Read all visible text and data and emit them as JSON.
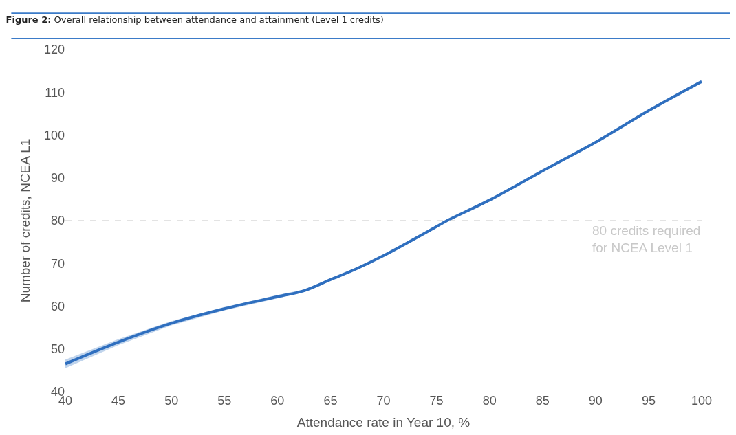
{
  "chart_data": {
    "type": "line",
    "title": "Figure 2: Overall relationship between attendance and attainment (Level 1 credits)",
    "xlabel": "Attendance rate in Year 10, %",
    "ylabel": "Number of credits, NCEA L1",
    "series": [
      {
        "color": "#2f6fbf",
        "x": [
          40,
          45,
          50,
          55,
          60,
          62.5,
          65,
          67.5,
          70,
          75,
          76,
          80,
          85,
          90,
          95,
          100
        ],
        "values": [
          46.5,
          51.6,
          56.0,
          59.4,
          62.2,
          63.6,
          66.2,
          68.8,
          71.8,
          78.6,
          80.0,
          84.8,
          91.6,
          98.3,
          105.7,
          112.5
        ],
        "lower": [
          45.5,
          50.9,
          55.5,
          59.0,
          61.8,
          63.3,
          66.0,
          68.6,
          71.6,
          78.4,
          79.8,
          84.6,
          91.4,
          98.1,
          105.4,
          112.1
        ],
        "upper": [
          47.5,
          52.3,
          56.5,
          59.8,
          62.6,
          63.9,
          66.4,
          69.0,
          72.0,
          78.8,
          80.2,
          85.0,
          91.8,
          98.5,
          106.0,
          112.9
        ]
      }
    ],
    "xlim": [
      40,
      100
    ],
    "xticks": [
      40,
      45,
      50,
      55,
      60,
      65,
      70,
      75,
      80,
      85,
      90,
      95,
      100
    ],
    "ylim": [
      40,
      120
    ],
    "yticks": [
      40,
      50,
      60,
      70,
      80,
      90,
      100,
      110,
      120
    ],
    "marker": "none",
    "line_style": "solid",
    "ref_lines": [
      {
        "axis": "y",
        "value": 80,
        "label": "80 credits required\nfor NCEA Level 1",
        "color": "#c8c8c8",
        "line_style": "dashed"
      }
    ]
  }
}
